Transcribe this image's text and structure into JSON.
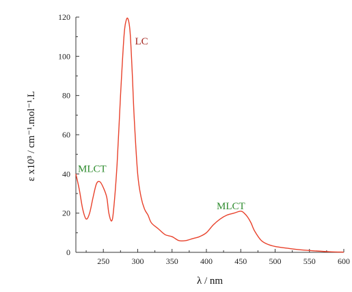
{
  "chart_data": {
    "type": "line",
    "xlabel": "λ / nm",
    "ylabel": "ε x10³ / cm⁻¹.mol⁻¹.L",
    "xlim": [
      210,
      600
    ],
    "ylim": [
      0,
      120
    ],
    "x_ticks": [
      250,
      300,
      350,
      400,
      450,
      500,
      550,
      600
    ],
    "y_ticks": [
      0,
      20,
      40,
      60,
      80,
      100,
      120
    ],
    "grid": false,
    "line_color": "#e8402a",
    "series": [
      {
        "x": [
          210,
          215,
          220,
          225,
          230,
          235,
          240,
          245,
          250,
          255,
          258,
          262,
          265,
          270,
          275,
          280,
          283,
          286,
          289,
          292,
          295,
          300,
          305,
          310,
          315,
          320,
          330,
          340,
          350,
          360,
          370,
          380,
          390,
          400,
          410,
          420,
          430,
          440,
          450,
          455,
          460,
          465,
          470,
          480,
          490,
          500,
          520,
          540,
          560,
          580,
          600
        ],
        "y": [
          40,
          32,
          22,
          17,
          20,
          28,
          35,
          36,
          33,
          28,
          20,
          16,
          22,
          45,
          80,
          110,
          118,
          119,
          112,
          92,
          68,
          40,
          28,
          22,
          19,
          15,
          12,
          9,
          8,
          6,
          6,
          7,
          8,
          10,
          14,
          17,
          19,
          20,
          21,
          20,
          18,
          15,
          11,
          6,
          4,
          3,
          2,
          1.2,
          0.7,
          0.3,
          0.1
        ]
      }
    ],
    "annotations": [
      {
        "text": "LC",
        "x": 296,
        "y": 106,
        "color": "#a3231c"
      },
      {
        "text": "MLCT",
        "x": 213,
        "y": 41,
        "color": "#2e8b2e"
      },
      {
        "text": "MLCT",
        "x": 415,
        "y": 22,
        "color": "#2e8b2e"
      }
    ]
  }
}
